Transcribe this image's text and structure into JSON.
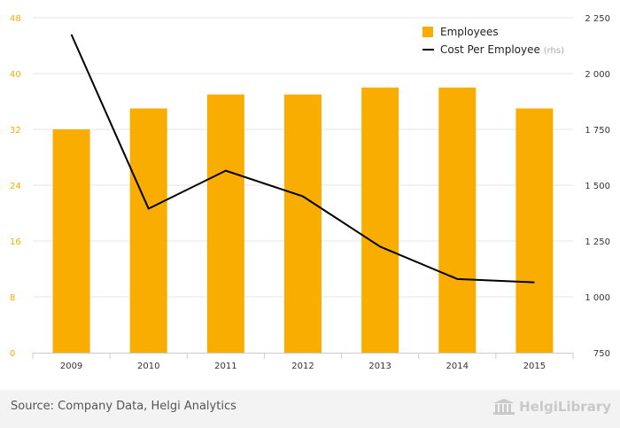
{
  "chart_data": {
    "type": "bar",
    "categories": [
      "2009",
      "2010",
      "2011",
      "2012",
      "2013",
      "2014",
      "2015"
    ],
    "series": [
      {
        "name": "Employees",
        "type": "bar",
        "axis": "left",
        "color": "#f9ad00",
        "values": [
          32,
          35,
          37,
          37,
          38,
          38,
          35
        ]
      },
      {
        "name": "Cost Per Employee",
        "legend_suffix": "(rhs)",
        "type": "line",
        "axis": "right",
        "color": "#000000",
        "values": [
          2175,
          1395,
          1565,
          1450,
          1225,
          1080,
          1065
        ]
      }
    ],
    "y_left": {
      "min": 0,
      "max": 48,
      "ticks": [
        "0",
        "8",
        "16",
        "24",
        "32",
        "40",
        "48"
      ],
      "color": "#f9ad00"
    },
    "y_right": {
      "min": 750,
      "max": 2250,
      "ticks": [
        "750",
        "1 000",
        "1 250",
        "1 500",
        "1 750",
        "2 000",
        "2 250"
      ]
    },
    "grid": true,
    "legend_position": "top-right"
  },
  "footer": {
    "source": "Source: Company Data, Helgi Analytics",
    "brand": "HelgiLibrary"
  },
  "colors": {
    "bar": "#f9ad00",
    "line": "#000000",
    "grid": "#e6e6e6",
    "footer_bg": "#f3f3f3"
  }
}
